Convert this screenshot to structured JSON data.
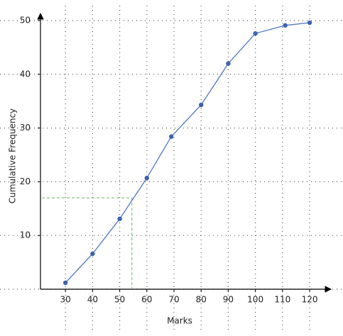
{
  "chart_data": {
    "type": "line",
    "x_label": "Marks",
    "y_label": "Cumulative Frequency",
    "x": [
      30,
      40,
      50,
      60,
      69,
      80,
      90,
      100,
      111,
      120
    ],
    "series": [
      {
        "color": "#4f74c4",
        "marker_color": "#3d62ad",
        "values": [
          1.2,
          6.6,
          13.1,
          20.7,
          28.4,
          34.3,
          42,
          47.6,
          49.1,
          49.6
        ]
      }
    ],
    "xlim": [
      20.8,
      128.1
    ],
    "ylim": [
      0,
      51
    ],
    "xticks": [
      30,
      40,
      50,
      60,
      70,
      80,
      90,
      100,
      110,
      120
    ],
    "yticks": [
      10,
      20,
      30,
      40,
      50
    ],
    "grid": true,
    "reference": {
      "x": 54.5,
      "y": 17,
      "color": "#5cb85c"
    }
  }
}
